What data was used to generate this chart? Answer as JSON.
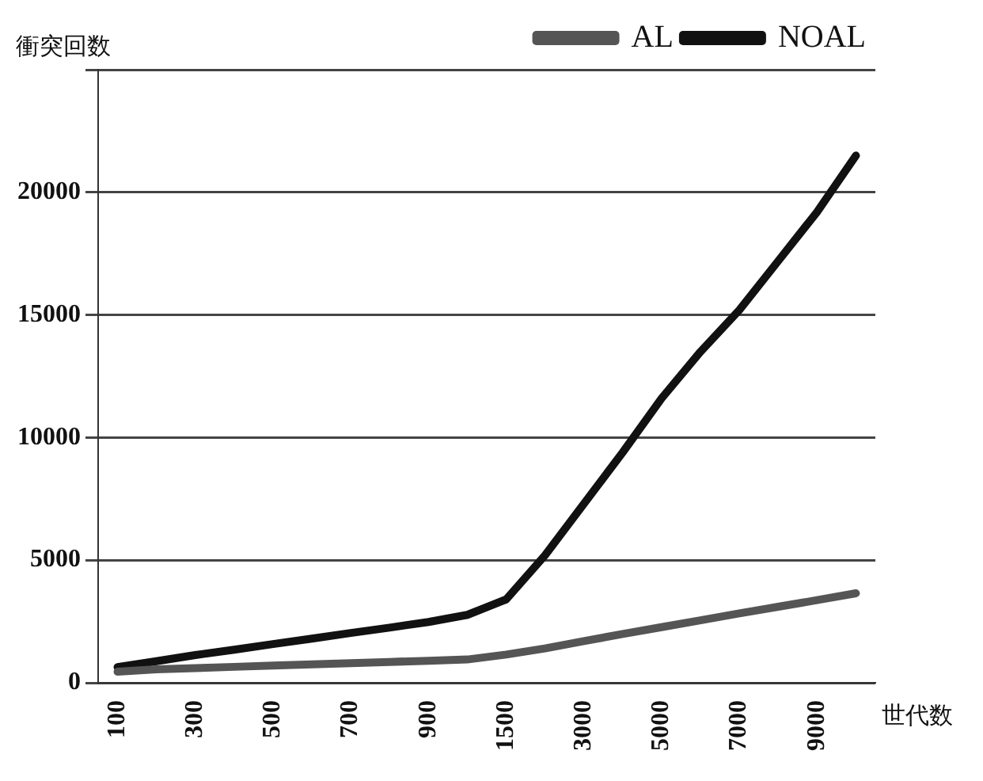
{
  "chart_data": {
    "type": "line",
    "xlabel": "世代数",
    "ylabel": "衝突回数",
    "categories": [
      "100",
      null,
      "300",
      null,
      "500",
      null,
      "700",
      null,
      "900",
      null,
      "1500",
      null,
      "3000",
      null,
      "5000",
      null,
      "7000",
      null,
      "9000",
      null
    ],
    "series": [
      {
        "name": "AL",
        "color": "#555555",
        "values": [
          450,
          550,
          600,
          650,
          700,
          750,
          800,
          850,
          900,
          950,
          1150,
          1400,
          1700,
          1990,
          2270,
          2550,
          2830,
          3100,
          3370,
          3650
        ]
      },
      {
        "name": "NOAL",
        "color": "#111111",
        "values": [
          640,
          880,
          1130,
          1350,
          1580,
          1800,
          2030,
          2250,
          2480,
          2770,
          3400,
          5200,
          7300,
          9400,
          11600,
          13500,
          15200,
          17200,
          19200,
          21500
        ]
      }
    ],
    "ylim": [
      0,
      25000
    ],
    "yticks": [
      0,
      5000,
      10000,
      15000,
      20000,
      {
        "value": 25000,
        "label": null
      }
    ],
    "grid": "y",
    "legend": "top right",
    "marker": "none",
    "line_style": "solid"
  }
}
